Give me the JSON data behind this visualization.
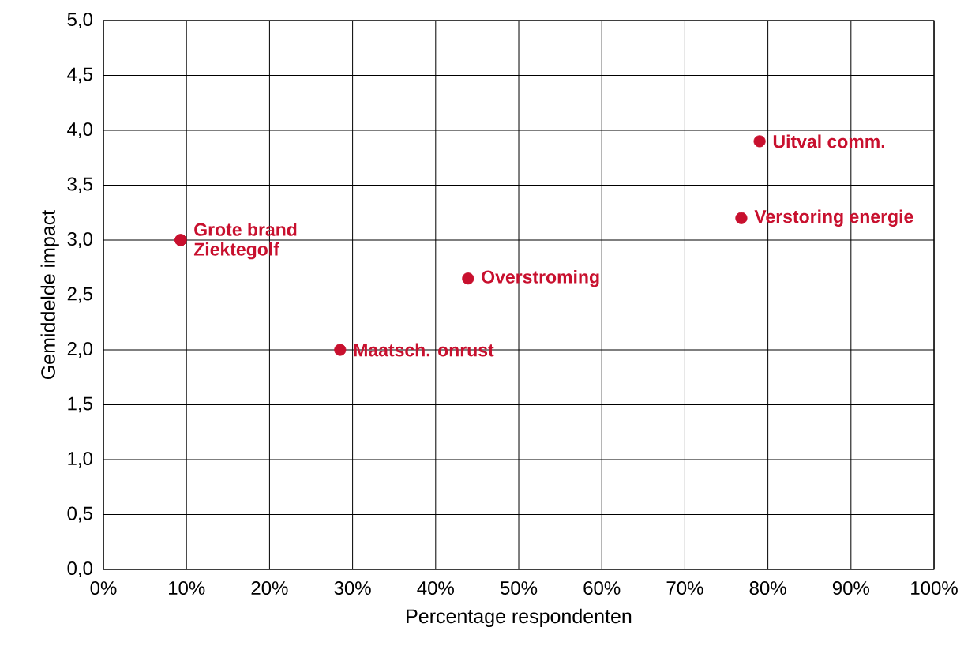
{
  "chart_data": {
    "type": "scatter",
    "xlabel": "Percentage respondenten",
    "ylabel": "Gemiddelde impact",
    "x": [
      9.3,
      9.3,
      28.5,
      43.9,
      76.8,
      79.0
    ],
    "values": [
      3.0,
      3.0,
      2.0,
      2.65,
      3.2,
      3.9
    ],
    "color": "#c8102e",
    "marker": "circle",
    "grid": true,
    "xlim": [
      0,
      100
    ],
    "ylim": [
      0,
      5
    ],
    "xticks": [
      {
        "value": 0,
        "label": "0%"
      },
      {
        "value": 10,
        "label": "10%"
      },
      {
        "value": 20,
        "label": "20%"
      },
      {
        "value": 30,
        "label": "30%"
      },
      {
        "value": 40,
        "label": "40%"
      },
      {
        "value": 50,
        "label": "50%"
      },
      {
        "value": 60,
        "label": "60%"
      },
      {
        "value": 70,
        "label": "70%"
      },
      {
        "value": 80,
        "label": "80%"
      },
      {
        "value": 90,
        "label": "90%"
      },
      {
        "value": 100,
        "label": "100%"
      }
    ],
    "yticks": [
      {
        "value": 0,
        "label": "0,0"
      },
      {
        "value": 0.5,
        "label": "0,5"
      },
      {
        "value": 1,
        "label": "1,0"
      },
      {
        "value": 1.5,
        "label": "1,5"
      },
      {
        "value": 2,
        "label": "2,0"
      },
      {
        "value": 2.5,
        "label": "2,5"
      },
      {
        "value": 3,
        "label": "3,0"
      },
      {
        "value": 3.5,
        "label": "3,5"
      },
      {
        "value": 4,
        "label": "4,0"
      },
      {
        "value": 4.5,
        "label": "4,5"
      },
      {
        "value": 5,
        "label": "5,0"
      }
    ],
    "annotations": [
      {
        "text": "Grote brand",
        "x": 9.3,
        "y": 3.0
      },
      {
        "text": "Ziektegolf",
        "x": 9.3,
        "y": 3.0
      },
      {
        "text": "Maatsch. onrust",
        "x": 28.5,
        "y": 2.0
      },
      {
        "text": "Overstroming",
        "x": 43.9,
        "y": 2.65
      },
      {
        "text": "Verstoring energie",
        "x": 76.8,
        "y": 3.2
      },
      {
        "text": "Uitval comm.",
        "x": 79.0,
        "y": 3.9
      }
    ]
  }
}
